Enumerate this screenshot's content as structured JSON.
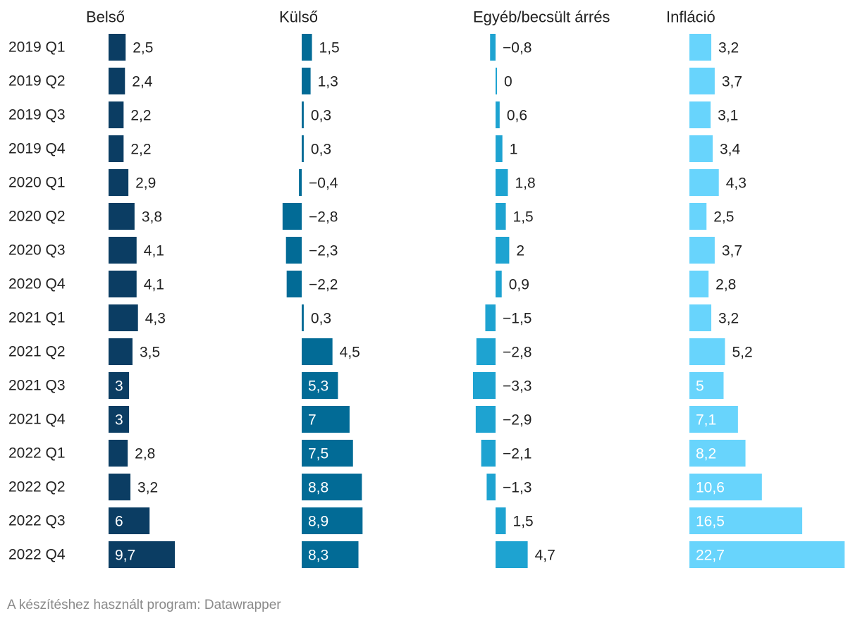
{
  "chart_data": {
    "type": "bar",
    "layout": "split-bars",
    "categories": [
      "2019 Q1",
      "2019 Q2",
      "2019 Q3",
      "2019 Q4",
      "2020 Q1",
      "2020 Q2",
      "2020 Q3",
      "2020 Q4",
      "2021 Q1",
      "2021 Q2",
      "2021 Q3",
      "2021 Q4",
      "2022 Q1",
      "2022 Q2",
      "2022 Q3",
      "2022 Q4"
    ],
    "series": [
      {
        "name": "Belső",
        "color": "#0b3d63",
        "values": [
          2.5,
          2.4,
          2.2,
          2.2,
          2.9,
          3.8,
          4.1,
          4.1,
          4.3,
          3.5,
          3,
          3,
          2.8,
          3.2,
          6,
          9.7
        ],
        "labels": [
          "2,5",
          "2,4",
          "2,2",
          "2,2",
          "2,9",
          "3,8",
          "4,1",
          "4,1",
          "4,3",
          "3,5",
          "3",
          "3",
          "2,8",
          "3,2",
          "6",
          "9,7"
        ]
      },
      {
        "name": "Külső",
        "color": "#026b96",
        "values": [
          1.5,
          1.3,
          0.3,
          0.3,
          -0.4,
          -2.8,
          -2.3,
          -2.2,
          0.3,
          4.5,
          5.3,
          7,
          7.5,
          8.8,
          8.9,
          8.3
        ],
        "labels": [
          "1,5",
          "1,3",
          "0,3",
          "0,3",
          "−0,4",
          "−2,8",
          "−2,3",
          "−2,2",
          "0,3",
          "4,5",
          "5,3",
          "7",
          "7,5",
          "8,8",
          "8,9",
          "8,3"
        ]
      },
      {
        "name": "Egyéb/becsült árrés",
        "color": "#1ea3d1",
        "values": [
          -0.8,
          0,
          0.6,
          1,
          1.8,
          1.5,
          2,
          0.9,
          -1.5,
          -2.8,
          -3.3,
          -2.9,
          -2.1,
          -1.3,
          1.5,
          4.7
        ],
        "labels": [
          "−0,8",
          "0",
          "0,6",
          "1",
          "1,8",
          "1,5",
          "2",
          "0,9",
          "−1,5",
          "−2,8",
          "−3,3",
          "−2,9",
          "−2,1",
          "−1,3",
          "1,5",
          "4,7"
        ]
      },
      {
        "name": "Infláció",
        "color": "#68d4fc",
        "values": [
          3.2,
          3.7,
          3.1,
          3.4,
          4.3,
          2.5,
          3.7,
          2.8,
          3.2,
          5.2,
          5,
          7.1,
          8.2,
          10.6,
          16.5,
          22.7
        ],
        "labels": [
          "3,2",
          "3,7",
          "3,1",
          "3,4",
          "4,3",
          "2,5",
          "3,7",
          "2,8",
          "3,2",
          "5,2",
          "5",
          "7,1",
          "8,2",
          "10,6",
          "16,5",
          "22,7"
        ]
      }
    ],
    "xlabel": "",
    "ylabel": "",
    "grid": false,
    "legend": "none"
  },
  "footer": {
    "credit": "A készítéshez használt program: Datawrapper"
  }
}
